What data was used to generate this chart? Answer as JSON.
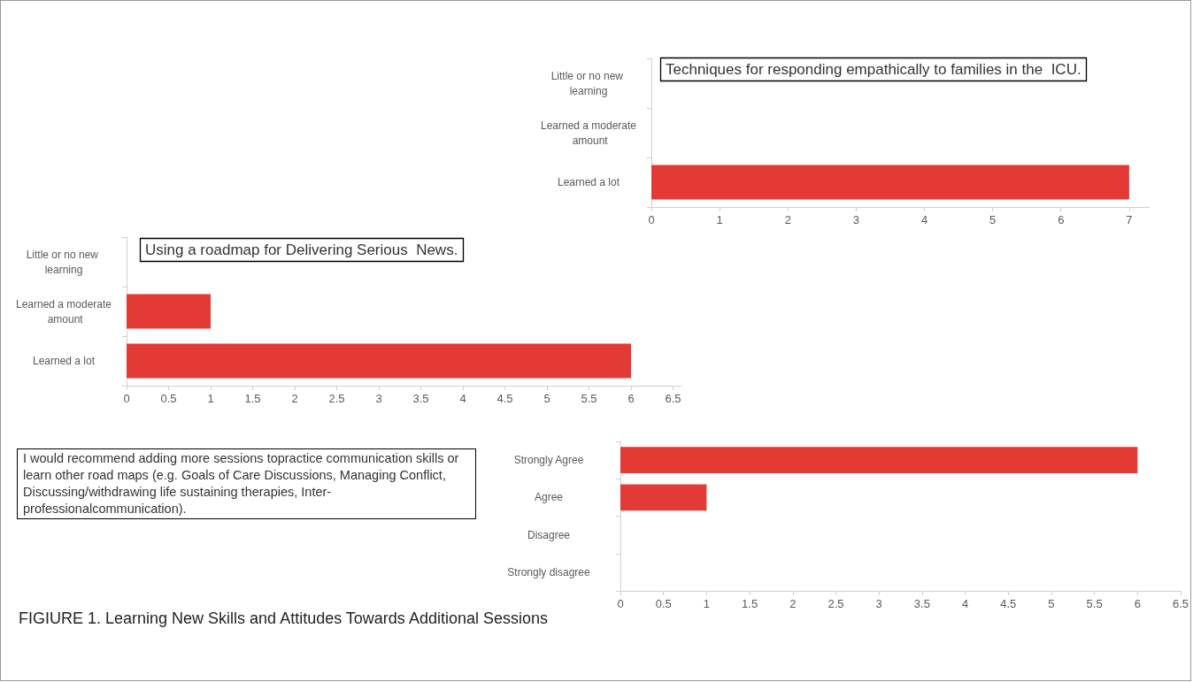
{
  "chart_data": [
    {
      "type": "bar",
      "orientation": "horizontal",
      "title": "Techniques for responding empathically to families in the  ICU.",
      "categories": [
        "Little or no new learning",
        "Learned a moderate amount",
        "Learned a lot"
      ],
      "values": [
        0,
        0,
        7
      ],
      "color": "#e43a36",
      "xlim": [
        0,
        7.3
      ],
      "xticks": [
        0,
        1,
        2,
        3,
        4,
        5,
        6,
        7
      ],
      "grid": false
    },
    {
      "type": "bar",
      "orientation": "horizontal",
      "title": "Using a roadmap for Delivering Serious  News.",
      "categories": [
        "Little or no new learning",
        "Learned a moderate amount",
        "Learned a lot"
      ],
      "values": [
        0,
        1,
        6
      ],
      "color": "#e43a36",
      "xlim": [
        0,
        6.6
      ],
      "xticks": [
        0,
        0.5,
        1,
        1.5,
        2,
        2.5,
        3,
        3.5,
        4,
        4.5,
        5,
        5.5,
        6,
        6.5
      ],
      "grid": false
    },
    {
      "type": "bar",
      "orientation": "horizontal",
      "annotations": [
        "I would recommend adding more sessions topractice communication skills or  learn other road maps (e.g. Goals of Care Discussions, Managing Conflict, Discussing/withdrawing life sustaining therapies,  Inter-professionalcommunication).",
        "FIGIURE 1.  Learning New Skills and Attitudes Towards Additional Sessions"
      ],
      "categories": [
        "Strongly Agree",
        "Agree",
        "Disagree",
        "Strongly disagree"
      ],
      "values": [
        6,
        1,
        0,
        0
      ],
      "color": "#e43a36",
      "xlim": [
        0,
        6.5
      ],
      "xticks": [
        0,
        0.5,
        1,
        1.5,
        2,
        2.5,
        3,
        3.5,
        4,
        4.5,
        5,
        5.5,
        6,
        6.5
      ],
      "grid": false
    }
  ]
}
